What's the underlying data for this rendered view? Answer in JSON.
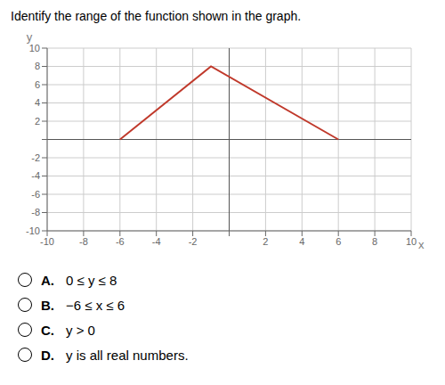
{
  "chart_data": {
    "type": "line",
    "title": "Identify the range of the function shown in the graph.",
    "xlabel": "x",
    "ylabel": "y",
    "x": [
      -6,
      -1,
      6
    ],
    "values": [
      0,
      8,
      0
    ],
    "color": "#c0392b",
    "xlim": [
      -10,
      10
    ],
    "ylim": [
      -10,
      10
    ],
    "xticks": [
      -10,
      -8,
      -6,
      -4,
      -2,
      {
        "value": 0,
        "label": null
      },
      2,
      4,
      6,
      8,
      10
    ],
    "yticks": [
      -10,
      -8,
      -6,
      -4,
      -2,
      {
        "value": 0,
        "label": null
      },
      2,
      4,
      6,
      8,
      10
    ],
    "grid": true,
    "annotations": [
      {
        "label": "A.",
        "text": "0 ≤ y ≤ 8"
      },
      {
        "label": "B.",
        "text": "−6 ≤ x ≤ 6"
      },
      {
        "label": "C.",
        "text": "y > 0"
      },
      {
        "label": "D.",
        "text": "y is all real numbers."
      }
    ]
  }
}
